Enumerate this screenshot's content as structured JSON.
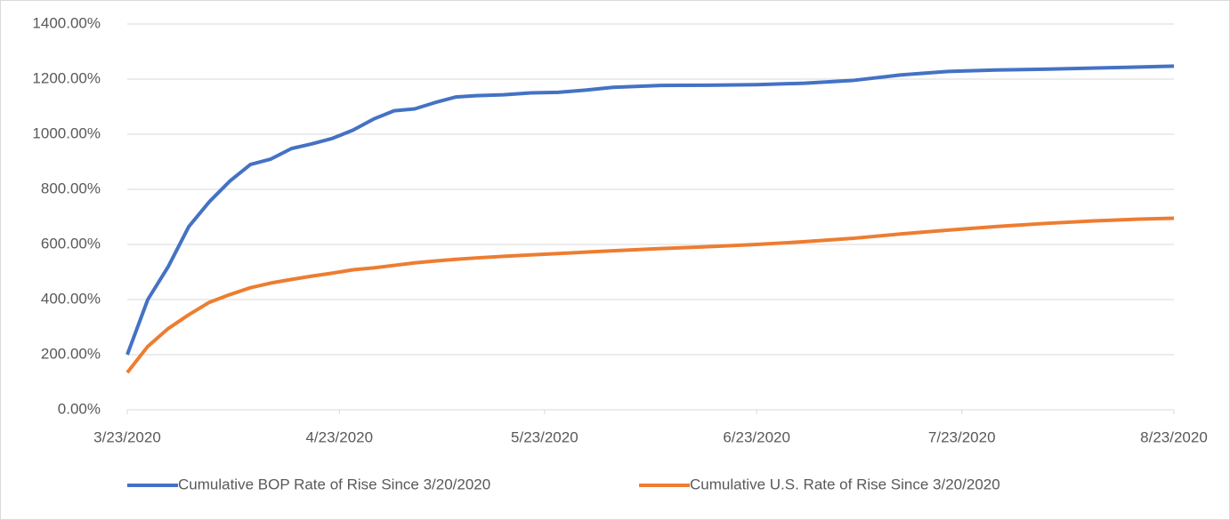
{
  "chart_data": {
    "type": "line",
    "x": [
      "3/23/2020",
      "3/26/2020",
      "3/29/2020",
      "4/1/2020",
      "4/4/2020",
      "4/7/2020",
      "4/10/2020",
      "4/13/2020",
      "4/16/2020",
      "4/19/2020",
      "4/22/2020",
      "4/25/2020",
      "4/28/2020",
      "5/1/2020",
      "5/4/2020",
      "5/7/2020",
      "5/10/2020",
      "5/13/2020",
      "5/17/2020",
      "5/21/2020",
      "5/25/2020",
      "5/29/2020",
      "6/2/2020",
      "6/9/2020",
      "6/16/2020",
      "6/23/2020",
      "6/30/2020",
      "7/7/2020",
      "7/14/2020",
      "7/21/2020",
      "7/28/2020",
      "8/4/2020",
      "8/11/2020",
      "8/18/2020",
      "8/23/2020"
    ],
    "series": [
      {
        "name": "Cumulative BOP Rate of Rise Since 3/20/2020",
        "color": "#4472c4",
        "values": [
          200,
          400,
          520,
          665,
          755,
          830,
          890,
          910,
          948,
          965,
          985,
          1015,
          1055,
          1085,
          1092,
          1115,
          1135,
          1140,
          1143,
          1150,
          1152,
          1160,
          1170,
          1177,
          1178,
          1180,
          1185,
          1195,
          1215,
          1228,
          1233,
          1236,
          1240,
          1244,
          1247
        ]
      },
      {
        "name": "Cumulative U.S. Rate of Rise Since 3/20/2020",
        "color": "#ed7d31",
        "values": [
          135,
          230,
          295,
          345,
          390,
          418,
          443,
          460,
          473,
          485,
          496,
          508,
          515,
          524,
          533,
          540,
          546,
          551,
          557,
          562,
          567,
          572,
          577,
          585,
          592,
          600,
          610,
          622,
          638,
          652,
          665,
          676,
          685,
          692,
          695
        ]
      }
    ],
    "xlim": [
      "3/23/2020",
      "8/23/2020"
    ],
    "xticks": [
      "3/23/2020",
      "4/23/2020",
      "5/23/2020",
      "6/23/2020",
      "7/23/2020",
      "8/23/2020"
    ],
    "ylim": [
      0,
      1400
    ],
    "yticks": [
      {
        "value": 0,
        "label": "0.00%"
      },
      {
        "value": 200,
        "label": "200.00%"
      },
      {
        "value": 400,
        "label": "400.00%"
      },
      {
        "value": 600,
        "label": "600.00%"
      },
      {
        "value": 800,
        "label": "800.00%"
      },
      {
        "value": 1000,
        "label": "1000.00%"
      },
      {
        "value": 1200,
        "label": "1200.00%"
      },
      {
        "value": 1400,
        "label": "1400.00%"
      }
    ],
    "grid": true,
    "legend": "bottom"
  }
}
